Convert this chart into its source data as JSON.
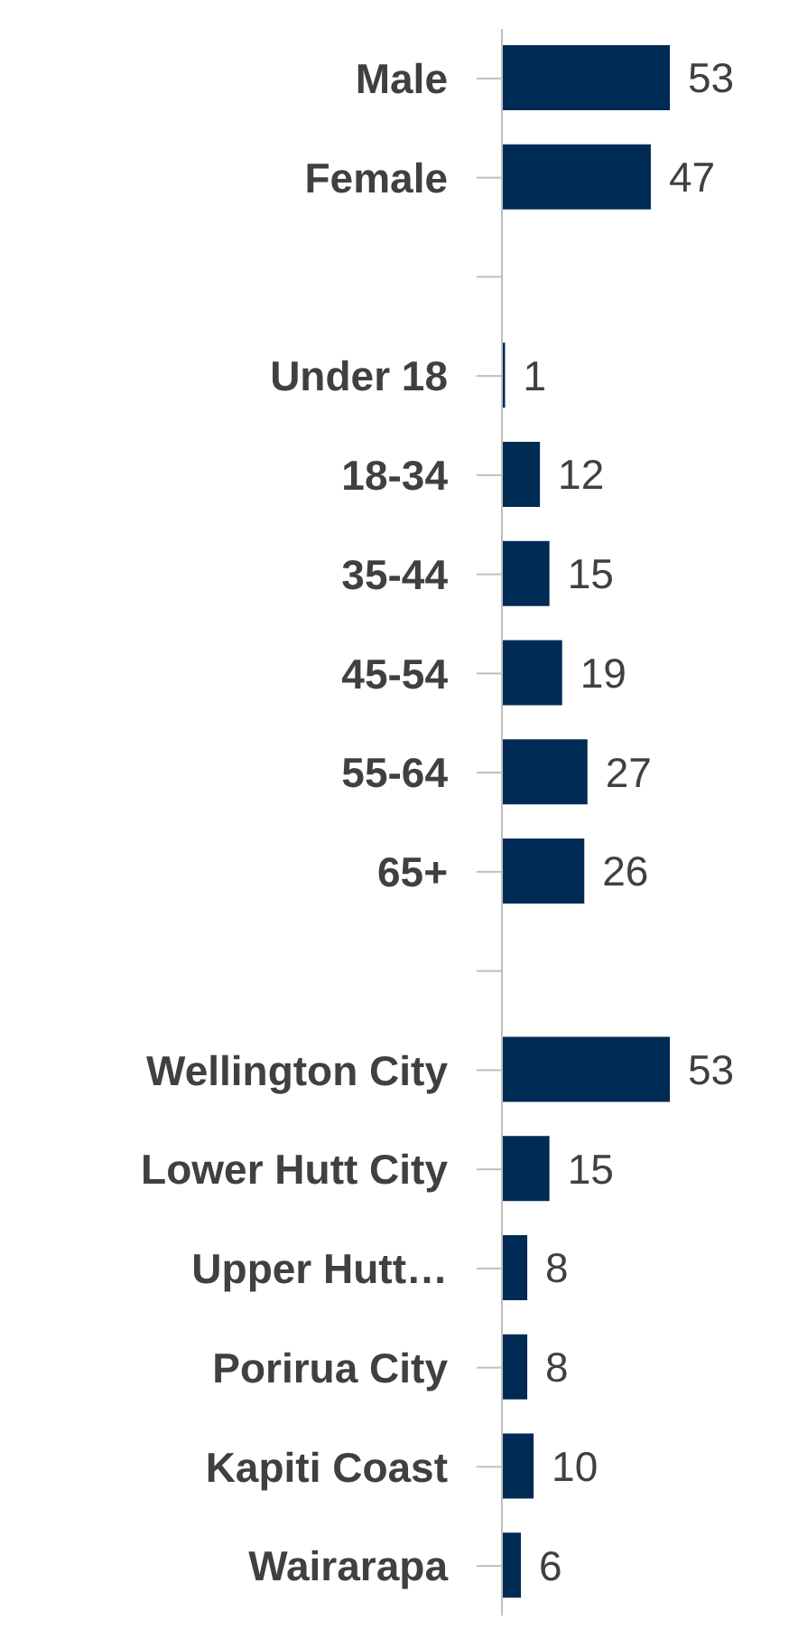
{
  "chart_data": {
    "type": "bar",
    "orientation": "horizontal",
    "categories": [
      "Male",
      "Female",
      null,
      "Under 18",
      "18-34",
      "35-44",
      "45-54",
      "55-64",
      "65+",
      null,
      "Wellington City",
      "Lower Hutt City",
      "Upper Hutt…",
      "Porirua City",
      "Kapiti Coast",
      "Wairarapa"
    ],
    "values": [
      53,
      47,
      null,
      1,
      12,
      15,
      19,
      27,
      26,
      null,
      53,
      15,
      8,
      8,
      10,
      6
    ],
    "color": "#002b54",
    "data_labels": true,
    "tick_labels": "y"
  }
}
